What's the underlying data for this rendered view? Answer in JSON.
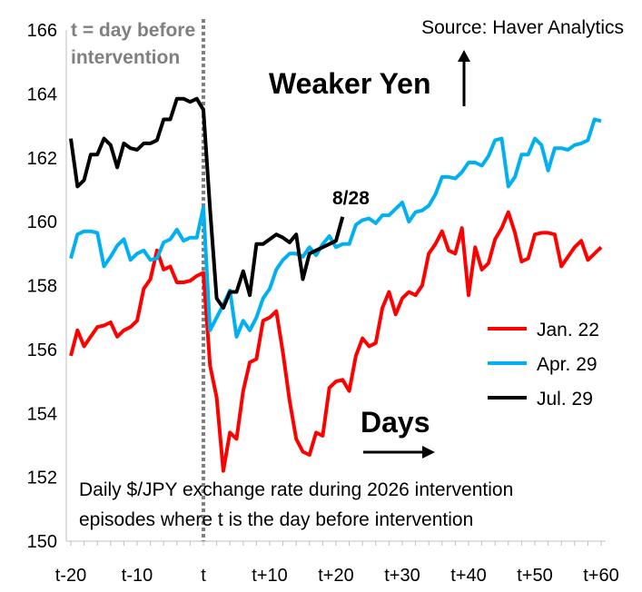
{
  "chart_data": {
    "type": "line",
    "source": "Source: Haver Analytics",
    "arrow_label_up": "Weaker Yen",
    "arrow_label_right": "Days",
    "caption_line1": "Daily $/JPY exchange rate during 2026 intervention",
    "caption_line2": "episodes where t is the day before intervention",
    "vline_label_line1": "t = day before",
    "vline_label_line2": "intervention",
    "endpoint_label": "8/28",
    "ylim": [
      150,
      166
    ],
    "xlim": [
      -20,
      60
    ],
    "y_ticks": [
      "150",
      "152",
      "154",
      "156",
      "158",
      "160",
      "162",
      "164",
      "166"
    ],
    "x_ticks": [
      {
        "value": -20,
        "label": "t-20"
      },
      {
        "value": -10,
        "label": "t-10"
      },
      {
        "value": 0,
        "label": "t"
      },
      {
        "value": 10,
        "label": "t+10"
      },
      {
        "value": 20,
        "label": "t+20"
      },
      {
        "value": 30,
        "label": "t+30"
      },
      {
        "value": 40,
        "label": "t+40"
      },
      {
        "value": 50,
        "label": "t+50"
      },
      {
        "value": 60,
        "label": "t+60"
      }
    ],
    "legend_position": "middle-right",
    "series": [
      {
        "name": "Jan. 22",
        "color": "#ff0000",
        "points": [
          [
            -20,
            155.8
          ],
          [
            -19,
            156.6
          ],
          [
            -18,
            156.1
          ],
          [
            -17,
            156.4
          ],
          [
            -16,
            156.7
          ],
          [
            -15,
            156.75
          ],
          [
            -14,
            156.85
          ],
          [
            -13,
            156.4
          ],
          [
            -12,
            156.6
          ],
          [
            -11,
            156.7
          ],
          [
            -10,
            156.9
          ],
          [
            -9,
            157.9
          ],
          [
            -8,
            158.2
          ],
          [
            -7,
            159.1
          ],
          [
            -6,
            158.5
          ],
          [
            -5,
            158.6
          ],
          [
            -4,
            158.1
          ],
          [
            -3,
            158.1
          ],
          [
            -2,
            158.15
          ],
          [
            -1,
            158.3
          ],
          [
            0,
            158.4
          ],
          [
            1,
            155.5
          ],
          [
            2,
            154.5
          ],
          [
            3,
            152.2
          ],
          [
            4,
            153.4
          ],
          [
            5,
            153.2
          ],
          [
            6,
            154.7
          ],
          [
            7,
            155.6
          ],
          [
            8,
            155.7
          ],
          [
            9,
            156.9
          ],
          [
            10,
            157.0
          ],
          [
            11,
            157.2
          ],
          [
            12,
            155.9
          ],
          [
            13,
            154.4
          ],
          [
            14,
            153.2
          ],
          [
            15,
            152.8
          ],
          [
            16,
            152.7
          ],
          [
            17,
            153.4
          ],
          [
            18,
            153.3
          ],
          [
            19,
            154.8
          ],
          [
            20,
            155.0
          ],
          [
            21,
            155.05
          ],
          [
            22,
            154.7
          ],
          [
            23,
            155.8
          ],
          [
            24,
            156.35
          ],
          [
            25,
            156.1
          ],
          [
            26,
            156.2
          ],
          [
            27,
            157.3
          ],
          [
            28,
            157.8
          ],
          [
            29,
            157.1
          ],
          [
            30,
            157.6
          ],
          [
            31,
            157.8
          ],
          [
            32,
            157.7
          ],
          [
            33,
            158.0
          ],
          [
            34,
            159.0
          ],
          [
            35,
            159.3
          ],
          [
            36,
            159.7
          ],
          [
            37,
            159.1
          ],
          [
            38,
            159.0
          ],
          [
            39,
            159.8
          ],
          [
            40,
            157.7
          ],
          [
            41,
            159.2
          ],
          [
            42,
            158.5
          ],
          [
            43,
            158.7
          ],
          [
            44,
            159.45
          ],
          [
            45,
            159.8
          ],
          [
            46,
            160.3
          ],
          [
            47,
            159.65
          ],
          [
            48,
            158.75
          ],
          [
            49,
            158.85
          ],
          [
            50,
            159.6
          ],
          [
            51,
            159.65
          ],
          [
            52,
            159.65
          ],
          [
            53,
            159.6
          ],
          [
            54,
            158.6
          ],
          [
            55,
            158.9
          ],
          [
            56,
            159.2
          ],
          [
            57,
            159.4
          ],
          [
            58,
            158.8
          ],
          [
            59,
            159.0
          ],
          [
            60,
            159.2
          ]
        ]
      },
      {
        "name": "Apr. 29",
        "color": "#00b0f0",
        "points": [
          [
            -20,
            158.85
          ],
          [
            -19,
            159.6
          ],
          [
            -18,
            159.7
          ],
          [
            -17,
            159.7
          ],
          [
            -16,
            159.65
          ],
          [
            -15,
            158.6
          ],
          [
            -14,
            158.9
          ],
          [
            -13,
            159.25
          ],
          [
            -12,
            159.45
          ],
          [
            -11,
            158.8
          ],
          [
            -10,
            159.0
          ],
          [
            -9,
            159.1
          ],
          [
            -8,
            158.8
          ],
          [
            -7,
            158.85
          ],
          [
            -6,
            159.35
          ],
          [
            -5,
            159.45
          ],
          [
            -4,
            159.75
          ],
          [
            -3,
            159.4
          ],
          [
            -2,
            159.5
          ],
          [
            -1,
            159.5
          ],
          [
            0,
            160.45
          ],
          [
            1,
            156.6
          ],
          [
            2,
            157.0
          ],
          [
            3,
            157.4
          ],
          [
            4,
            157.85
          ],
          [
            5,
            156.4
          ],
          [
            6,
            156.9
          ],
          [
            7,
            156.6
          ],
          [
            8,
            157.0
          ],
          [
            9,
            157.6
          ],
          [
            10,
            157.9
          ],
          [
            11,
            158.5
          ],
          [
            12,
            158.8
          ],
          [
            13,
            159.0
          ],
          [
            14,
            159.0
          ],
          [
            15,
            158.9
          ],
          [
            16,
            159.2
          ],
          [
            17,
            158.95
          ],
          [
            18,
            159.3
          ],
          [
            19,
            159.55
          ],
          [
            20,
            159.2
          ],
          [
            21,
            159.3
          ],
          [
            22,
            159.3
          ],
          [
            23,
            159.9
          ],
          [
            24,
            160.05
          ],
          [
            25,
            160.1
          ],
          [
            26,
            159.95
          ],
          [
            27,
            160.2
          ],
          [
            28,
            160.2
          ],
          [
            29,
            160.4
          ],
          [
            30,
            160.6
          ],
          [
            31,
            160.0
          ],
          [
            32,
            160.3
          ],
          [
            33,
            160.35
          ],
          [
            34,
            160.5
          ],
          [
            35,
            160.85
          ],
          [
            36,
            161.4
          ],
          [
            37,
            161.4
          ],
          [
            38,
            161.35
          ],
          [
            39,
            161.55
          ],
          [
            40,
            161.85
          ],
          [
            41,
            161.85
          ],
          [
            42,
            161.75
          ],
          [
            43,
            162.05
          ],
          [
            44,
            162.55
          ],
          [
            45,
            162.6
          ],
          [
            46,
            161.1
          ],
          [
            47,
            161.4
          ],
          [
            48,
            162.1
          ],
          [
            49,
            162.1
          ],
          [
            50,
            162.6
          ],
          [
            51,
            162.4
          ],
          [
            52,
            161.6
          ],
          [
            53,
            162.3
          ],
          [
            54,
            162.3
          ],
          [
            55,
            162.25
          ],
          [
            56,
            162.4
          ],
          [
            57,
            162.45
          ],
          [
            58,
            162.55
          ],
          [
            59,
            163.2
          ],
          [
            60,
            163.15
          ]
        ]
      },
      {
        "name": "Jul. 29",
        "color": "#000000",
        "points": [
          [
            -20,
            162.6
          ],
          [
            -19,
            161.1
          ],
          [
            -18,
            161.3
          ],
          [
            -17,
            162.1
          ],
          [
            -16,
            162.1
          ],
          [
            -15,
            162.6
          ],
          [
            -14,
            162.4
          ],
          [
            -13,
            161.7
          ],
          [
            -12,
            162.45
          ],
          [
            -11,
            162.3
          ],
          [
            -10,
            162.25
          ],
          [
            -9,
            162.45
          ],
          [
            -8,
            162.45
          ],
          [
            -7,
            162.55
          ],
          [
            -6,
            163.2
          ],
          [
            -5,
            163.2
          ],
          [
            -4,
            163.85
          ],
          [
            -3,
            163.85
          ],
          [
            -2,
            163.75
          ],
          [
            -1,
            163.85
          ],
          [
            0,
            163.5
          ],
          [
            1,
            160.4
          ],
          [
            2,
            157.6
          ],
          [
            3,
            157.3
          ],
          [
            4,
            157.8
          ],
          [
            5,
            157.8
          ],
          [
            6,
            158.45
          ],
          [
            7,
            157.7
          ],
          [
            8,
            159.3
          ],
          [
            9,
            159.3
          ],
          [
            10,
            159.45
          ],
          [
            11,
            159.6
          ],
          [
            12,
            159.5
          ],
          [
            13,
            159.35
          ],
          [
            14,
            159.6
          ],
          [
            15,
            158.2
          ],
          [
            16,
            159.0
          ],
          [
            17,
            159.1
          ],
          [
            18,
            159.2
          ],
          [
            19,
            159.3
          ],
          [
            20,
            159.4
          ],
          [
            21,
            160.15
          ]
        ]
      }
    ]
  }
}
